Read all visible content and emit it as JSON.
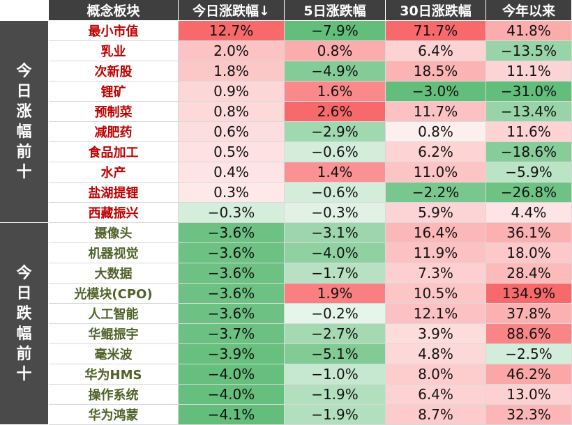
{
  "chart_data": {
    "type": "table",
    "columns": [
      "概念板块",
      "今日涨跌幅↓",
      "5日涨跌幅",
      "30日涨跌幅",
      "今年以来"
    ],
    "groups": [
      {
        "label": "今日涨幅前十",
        "direction": "up",
        "rows": [
          {
            "name": "最小市值",
            "values": [
              "12.7%",
              "−7.9%",
              "71.7%",
              "41.8%"
            ]
          },
          {
            "name": "乳业",
            "values": [
              "2.0%",
              "0.8%",
              "6.4%",
              "−13.5%"
            ]
          },
          {
            "name": "次新股",
            "values": [
              "1.8%",
              "−4.9%",
              "18.5%",
              "11.1%"
            ]
          },
          {
            "name": "锂矿",
            "values": [
              "0.9%",
              "1.6%",
              "−3.0%",
              "−31.0%"
            ]
          },
          {
            "name": "预制菜",
            "values": [
              "0.8%",
              "2.6%",
              "11.7%",
              "−13.4%"
            ]
          },
          {
            "name": "减肥药",
            "values": [
              "0.6%",
              "−2.9%",
              "0.8%",
              "11.6%"
            ]
          },
          {
            "name": "食品加工",
            "values": [
              "0.5%",
              "−0.6%",
              "6.2%",
              "−18.6%"
            ]
          },
          {
            "name": "水产",
            "values": [
              "0.4%",
              "1.4%",
              "11.0%",
              "−5.9%"
            ]
          },
          {
            "name": "盐湖提锂",
            "values": [
              "0.3%",
              "−0.6%",
              "−2.2%",
              "−26.8%"
            ]
          },
          {
            "name": "西藏振兴",
            "values": [
              "−0.3%",
              "−0.3%",
              "5.9%",
              "4.4%"
            ]
          }
        ]
      },
      {
        "label": "今日跌幅前十",
        "direction": "down",
        "rows": [
          {
            "name": "摄像头",
            "values": [
              "−3.6%",
              "−3.1%",
              "16.4%",
              "36.1%"
            ]
          },
          {
            "name": "机器视觉",
            "values": [
              "−3.6%",
              "−4.0%",
              "11.9%",
              "18.0%"
            ]
          },
          {
            "name": "大数据",
            "values": [
              "−3.6%",
              "−1.7%",
              "7.3%",
              "28.4%"
            ]
          },
          {
            "name": "光模块(CPO)",
            "values": [
              "−3.6%",
              "1.9%",
              "10.5%",
              "134.9%"
            ]
          },
          {
            "name": "人工智能",
            "values": [
              "−3.6%",
              "−0.2%",
              "12.1%",
              "37.8%"
            ]
          },
          {
            "name": "华鲲振宇",
            "values": [
              "−3.7%",
              "−2.7%",
              "3.9%",
              "88.6%"
            ]
          },
          {
            "name": "毫米波",
            "values": [
              "−3.9%",
              "−5.1%",
              "4.8%",
              "−2.5%"
            ]
          },
          {
            "name": "华为HMS",
            "values": [
              "−4.0%",
              "−1.0%",
              "8.0%",
              "46.2%"
            ]
          },
          {
            "name": "操作系统",
            "values": [
              "−4.0%",
              "−1.9%",
              "6.4%",
              "13.0%"
            ]
          },
          {
            "name": "华为鸿蒙",
            "values": [
              "−4.1%",
              "−1.9%",
              "8.7%",
              "32.3%"
            ]
          }
        ]
      }
    ],
    "colors": {
      "header_bg": "#3f3f3f",
      "group_bg": "#4a4a4a",
      "positive": "#f8696b",
      "negative": "#63be7b",
      "neutral": "#ffffff",
      "name_up": "#c00000",
      "name_down": "#4f6228"
    }
  }
}
